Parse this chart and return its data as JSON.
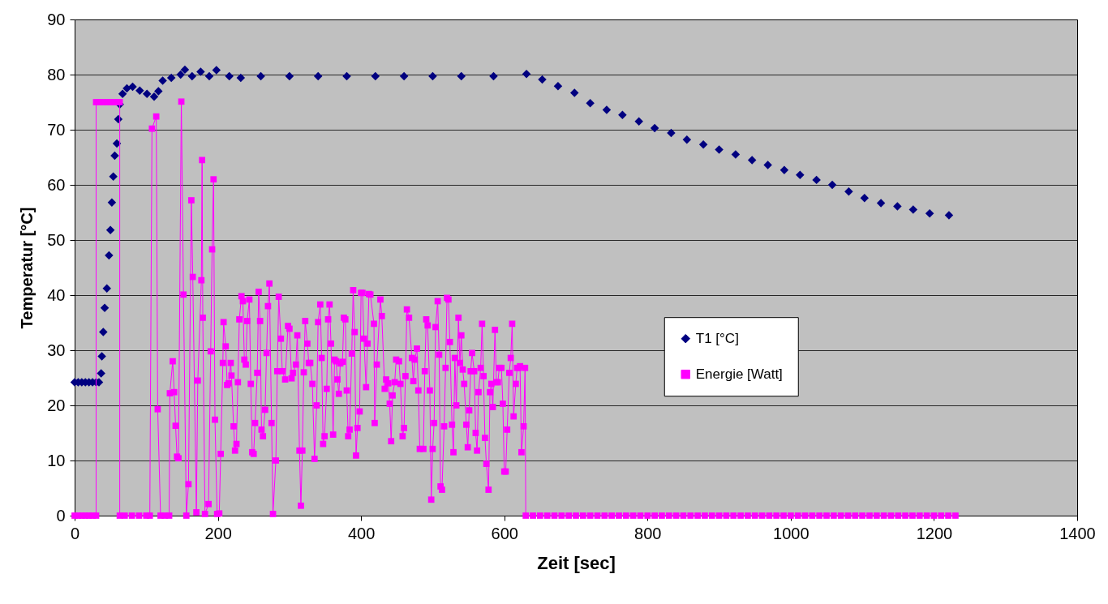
{
  "chart_data": {
    "type": "scatter",
    "xlabel": "Zeit [sec]",
    "ylabel": "Temperatur [°C]",
    "xlim": [
      0,
      1400
    ],
    "xticks": [
      0,
      200,
      400,
      600,
      800,
      1000,
      1200,
      1400
    ],
    "ylim": [
      0,
      90
    ],
    "yticks": [
      0,
      10,
      20,
      30,
      40,
      50,
      60,
      70,
      80,
      90
    ],
    "grid": "y",
    "legend": "right",
    "series": [
      {
        "name": "T1 [°C]",
        "marker": "diamond",
        "color": "#000080",
        "x": [
          0,
          5,
          10,
          15,
          20,
          25,
          30,
          34,
          37,
          38,
          40,
          42,
          45,
          48,
          50,
          52,
          54,
          56,
          59,
          61,
          63,
          67,
          73,
          81,
          91,
          101,
          111,
          117,
          123,
          135,
          148,
          154,
          164,
          176,
          188,
          198,
          216,
          232,
          260,
          300,
          340,
          380,
          420,
          460,
          500,
          540,
          585,
          631,
          653,
          675,
          698,
          720,
          743,
          765,
          788,
          810,
          833,
          855,
          878,
          900,
          923,
          946,
          968,
          991,
          1013,
          1036,
          1058,
          1081,
          1103,
          1126,
          1149,
          1171,
          1194,
          1221
        ],
        "values": [
          24.2,
          24.2,
          24.2,
          24.2,
          24.2,
          24.2,
          24.2,
          24.2,
          25.8,
          28.9,
          33.3,
          37.7,
          41.2,
          47.2,
          51.8,
          56.8,
          61.5,
          65.3,
          67.5,
          71.9,
          74.6,
          76.5,
          77.5,
          77.8,
          77.1,
          76.5,
          76,
          77,
          78.9,
          79.4,
          80,
          80.9,
          79.7,
          80.5,
          79.7,
          80.8,
          79.7,
          79.4,
          79.7,
          79.7,
          79.7,
          79.7,
          79.7,
          79.7,
          79.7,
          79.7,
          79.7,
          80.1,
          79.1,
          77.9,
          76.7,
          74.8,
          73.6,
          72.7,
          71.5,
          70.3,
          69.4,
          68.2,
          67.3,
          66.4,
          65.5,
          64.5,
          63.6,
          62.7,
          61.8,
          60.9,
          60,
          58.8,
          57.6,
          56.7,
          56.1,
          55.5,
          54.8,
          54.5
        ]
      },
      {
        "name": "Energie [Watt]",
        "type": "line",
        "marker": "square",
        "line_style": "solid",
        "color": "#ff00ff",
        "x": [
          0,
          5,
          10,
          15,
          20,
          25,
          30,
          30,
          35,
          40,
          45,
          50,
          55,
          60,
          63,
          63,
          70,
          80,
          90,
          100,
          105,
          108,
          114,
          116,
          120,
          126,
          132,
          133,
          137,
          139,
          141,
          143,
          145,
          149,
          152,
          156,
          159,
          163,
          165,
          170,
          172,
          177,
          178,
          179,
          182,
          187,
          190,
          192,
          194,
          196,
          199,
          202,
          204,
          207,
          208,
          211,
          213,
          215,
          218,
          219,
          222,
          224,
          226,
          228,
          230,
          233,
          235,
          237,
          239,
          241,
          244,
          246,
          248,
          250,
          252,
          255,
          257,
          259,
          261,
          263,
          266,
          268,
          270,
          272,
          275,
          277,
          281,
          283,
          285,
          288,
          290,
          294,
          298,
          300,
          303,
          305,
          309,
          311,
          314,
          316,
          318,
          320,
          322,
          325,
          327,
          329,
          332,
          335,
          338,
          340,
          343,
          345,
          347,
          349,
          352,
          354,
          356,
          358,
          361,
          363,
          365,
          367,
          369,
          371,
          374,
          376,
          378,
          380,
          382,
          384,
          387,
          389,
          391,
          393,
          395,
          398,
          400,
          402,
          404,
          407,
          409,
          411,
          413,
          418,
          419,
          422,
          427,
          429,
          433,
          435,
          438,
          440,
          442,
          444,
          447,
          449,
          453,
          455,
          458,
          460,
          462,
          464,
          467,
          471,
          473,
          475,
          478,
          480,
          482,
          487,
          489,
          491,
          493,
          496,
          498,
          500,
          502,
          504,
          507,
          509,
          511,
          513,
          516,
          518,
          520,
          522,
          524,
          527,
          529,
          531,
          533,
          536,
          538,
          540,
          542,
          544,
          547,
          549,
          551,
          553,
          555,
          558,
          560,
          562,
          564,
          567,
          569,
          571,
          573,
          575,
          578,
          580,
          582,
          584,
          587,
          589,
          591,
          593,
          596,
          598,
          600,
          602,
          604,
          607,
          609,
          611,
          613,
          616,
          618,
          620,
          622,
          624,
          627,
          629,
          630,
          640,
          650,
          660,
          670,
          680,
          690,
          700,
          710,
          720,
          730,
          740,
          750,
          760,
          770,
          780,
          790,
          800,
          810,
          820,
          830,
          840,
          850,
          860,
          870,
          880,
          890,
          900,
          910,
          920,
          930,
          940,
          950,
          960,
          970,
          980,
          990,
          1000,
          1010,
          1020,
          1030,
          1040,
          1050,
          1060,
          1070,
          1080,
          1090,
          1100,
          1110,
          1120,
          1130,
          1140,
          1150,
          1160,
          1170,
          1180,
          1190,
          1200,
          1210,
          1220,
          1230
        ],
        "values": [
          0,
          0,
          0,
          0,
          0,
          0,
          0,
          75,
          75,
          75,
          75,
          75,
          75,
          75,
          75,
          0,
          0,
          0,
          0,
          0,
          0,
          70.2,
          72.4,
          19.3,
          0,
          0,
          0,
          22.2,
          28,
          22.4,
          16.3,
          10.7,
          10.4,
          75.1,
          40.1,
          0,
          5.7,
          57.2,
          43.3,
          0.6,
          24.5,
          42.7,
          64.5,
          35.9,
          0.3,
          2.1,
          29.8,
          48.3,
          61,
          17.4,
          0.3,
          0.4,
          11.2,
          27.7,
          35.1,
          30.7,
          23.7,
          24,
          27.7,
          25.4,
          16.2,
          11.8,
          13,
          24.2,
          35.6,
          39.8,
          38.9,
          28.3,
          27.4,
          35.3,
          39.2,
          23.9,
          11.5,
          11.2,
          16.8,
          25.9,
          40.6,
          35.3,
          15.6,
          14.4,
          19.2,
          29.5,
          38,
          42.1,
          16.8,
          0.3,
          10,
          26.2,
          39.7,
          32.1,
          26.2,
          24.7,
          34.4,
          33.9,
          24.9,
          25.9,
          27.4,
          32.7,
          11.8,
          1.8,
          11.8,
          26,
          35.3,
          31.2,
          27.7,
          27.7,
          23.9,
          10.3,
          20,
          35.1,
          38.3,
          28.6,
          13,
          14.4,
          23,
          35.6,
          38.3,
          31.2,
          14.7,
          28.3,
          28,
          24.7,
          22.1,
          27.6,
          27.9,
          35.9,
          35.6,
          22.7,
          14.4,
          15.6,
          29.4,
          40.9,
          33.3,
          10.9,
          15.9,
          18.9,
          40.4,
          40.4,
          32.1,
          23.3,
          31.2,
          40.2,
          40.1,
          34.8,
          16.8,
          27.4,
          39.2,
          36.2,
          23,
          24.7,
          24,
          20.3,
          13.5,
          21.8,
          24.2,
          28.3,
          28,
          23.9,
          14.4,
          15.9,
          25.3,
          37.4,
          35.9,
          28.6,
          24.4,
          28.3,
          30.3,
          22.7,
          12.1,
          12.1,
          26.2,
          35.6,
          34.5,
          22.7,
          2.9,
          12.1,
          16.8,
          34.2,
          38.9,
          29.2,
          5.3,
          4.7,
          16.2,
          26.8,
          39.5,
          39.2,
          31.5,
          16.5,
          11.5,
          28.6,
          20,
          35.9,
          27.7,
          32.7,
          26.5,
          23.9,
          16.5,
          12.4,
          19.1,
          26.2,
          29.5,
          26.2,
          15,
          11.8,
          22.4,
          26.8,
          34.8,
          25.3,
          14.1,
          9.4,
          4.7,
          22.4,
          23.9,
          19.7,
          33.7,
          24.2,
          24.2,
          26.8,
          26.8,
          20.3,
          8,
          8,
          15.6,
          25.9,
          28.6,
          34.8,
          18,
          23.9,
          26.8,
          26.8,
          27.1,
          11.5,
          16.2,
          26.8,
          0,
          0,
          0,
          0,
          0,
          0,
          0,
          0,
          0,
          0,
          0,
          0,
          0,
          0,
          0,
          0,
          0,
          0,
          0,
          0,
          0,
          0,
          0,
          0,
          0,
          0,
          0,
          0,
          0,
          0,
          0,
          0,
          0,
          0,
          0,
          0,
          0,
          0,
          0,
          0,
          0,
          0,
          0,
          0,
          0,
          0,
          0,
          0,
          0,
          0,
          0,
          0,
          0,
          0,
          0,
          0,
          0,
          0,
          0,
          0,
          0
        ]
      }
    ]
  }
}
